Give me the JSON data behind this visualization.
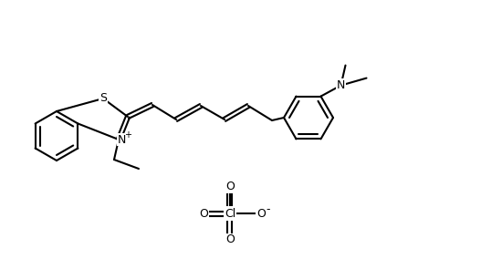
{
  "background_color": "#ffffff",
  "line_color": "#000000",
  "line_width": 1.5,
  "fig_width": 5.27,
  "fig_height": 3.07,
  "dpi": 100,
  "bond_color": "black",
  "atom_labels": {
    "S": "S",
    "N": "N",
    "Cl": "Cl",
    "O_minus": "O",
    "N_dimethyl": "N"
  }
}
